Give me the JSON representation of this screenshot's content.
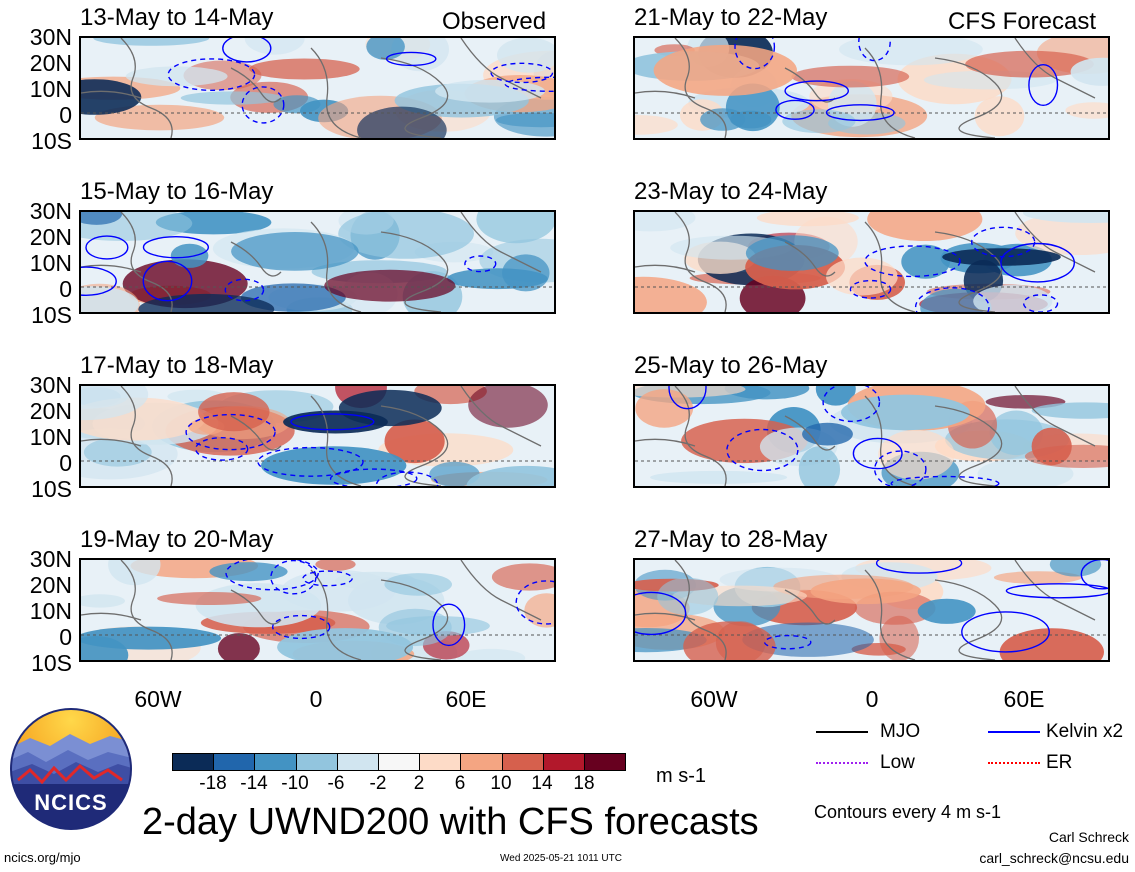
{
  "panels": {
    "left": [
      {
        "date": "13-May to 14-May",
        "tag": "Observed"
      },
      {
        "date": "15-May to 16-May",
        "tag": ""
      },
      {
        "date": "17-May to 18-May",
        "tag": ""
      },
      {
        "date": "19-May to 20-May",
        "tag": ""
      }
    ],
    "right": [
      {
        "date": "21-May to 22-May",
        "tag": "CFS Forecast"
      },
      {
        "date": "23-May to 24-May",
        "tag": ""
      },
      {
        "date": "25-May to 26-May",
        "tag": ""
      },
      {
        "date": "27-May to 28-May",
        "tag": ""
      }
    ]
  },
  "lat_labels": [
    "30N",
    "20N",
    "10N",
    "0",
    "10S"
  ],
  "lon_labels": [
    "60W",
    "0",
    "60E"
  ],
  "colorbar": {
    "ticks": [
      "-18",
      "-14",
      "-10",
      "-6",
      "-2",
      "2",
      "6",
      "10",
      "14",
      "18"
    ],
    "colors": [
      "#0b2b57",
      "#2166ac",
      "#4393c3",
      "#92c5de",
      "#d1e5f0",
      "#f7f7f7",
      "#fddbc7",
      "#f4a582",
      "#d6604d",
      "#b2182b",
      "#67001f"
    ],
    "units": "m s-1"
  },
  "legend": {
    "items": [
      {
        "label": "MJO",
        "color": "#000000"
      },
      {
        "label": "Kelvin x2",
        "color": "#0000ff"
      },
      {
        "label": "Low",
        "color": "#a020f0"
      },
      {
        "label": "ER",
        "color": "#ff0000"
      }
    ],
    "contour_note": "Contours every 4 m s-1"
  },
  "logo": {
    "text": "NCICS"
  },
  "main_title": "2-day UWND200 with CFS forecasts",
  "footer": {
    "url": "ncics.org/mjo",
    "timestamp": "Wed 2025-05-21 1011 UTC",
    "author": "Carl Schreck",
    "email": "carl_schreck@ncsu.edu"
  }
}
